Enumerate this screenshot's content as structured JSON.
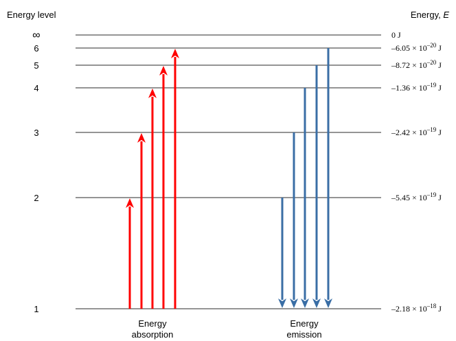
{
  "header": {
    "left_label": "Energy level",
    "right_label_prefix": "Energy, ",
    "right_label_symbol": "E"
  },
  "levels": [
    {
      "label": "∞",
      "energy_mantissa": "",
      "energy_exp": "",
      "energy_text": "0 J"
    },
    {
      "label": "6",
      "energy_mantissa": "–6.05 × 10",
      "energy_exp": "–20",
      "energy_text": " J"
    },
    {
      "label": "5",
      "energy_mantissa": "–8.72 × 10",
      "energy_exp": "–20",
      "energy_text": " J"
    },
    {
      "label": "4",
      "energy_mantissa": "–1.36 × 10",
      "energy_exp": "–19",
      "energy_text": " J"
    },
    {
      "label": "3",
      "energy_mantissa": "–2.42 × 10",
      "energy_exp": "–19",
      "energy_text": " J"
    },
    {
      "label": "2",
      "energy_mantissa": "–5.45 × 10",
      "energy_exp": "–19",
      "energy_text": " J"
    },
    {
      "label": "1",
      "energy_mantissa": "–2.18 × 10",
      "energy_exp": "–18",
      "energy_text": " J"
    }
  ],
  "absorption": {
    "caption_line1": "Energy",
    "caption_line2": "absorption",
    "color": "#ff0000",
    "from_level": "1",
    "to_levels": [
      "2",
      "3",
      "4",
      "5",
      "6"
    ]
  },
  "emission": {
    "caption_line1": "Energy",
    "caption_line2": "emission",
    "color": "#3a6ea5",
    "to_level": "1",
    "from_levels": [
      "2",
      "3",
      "4",
      "5",
      "6"
    ]
  }
}
